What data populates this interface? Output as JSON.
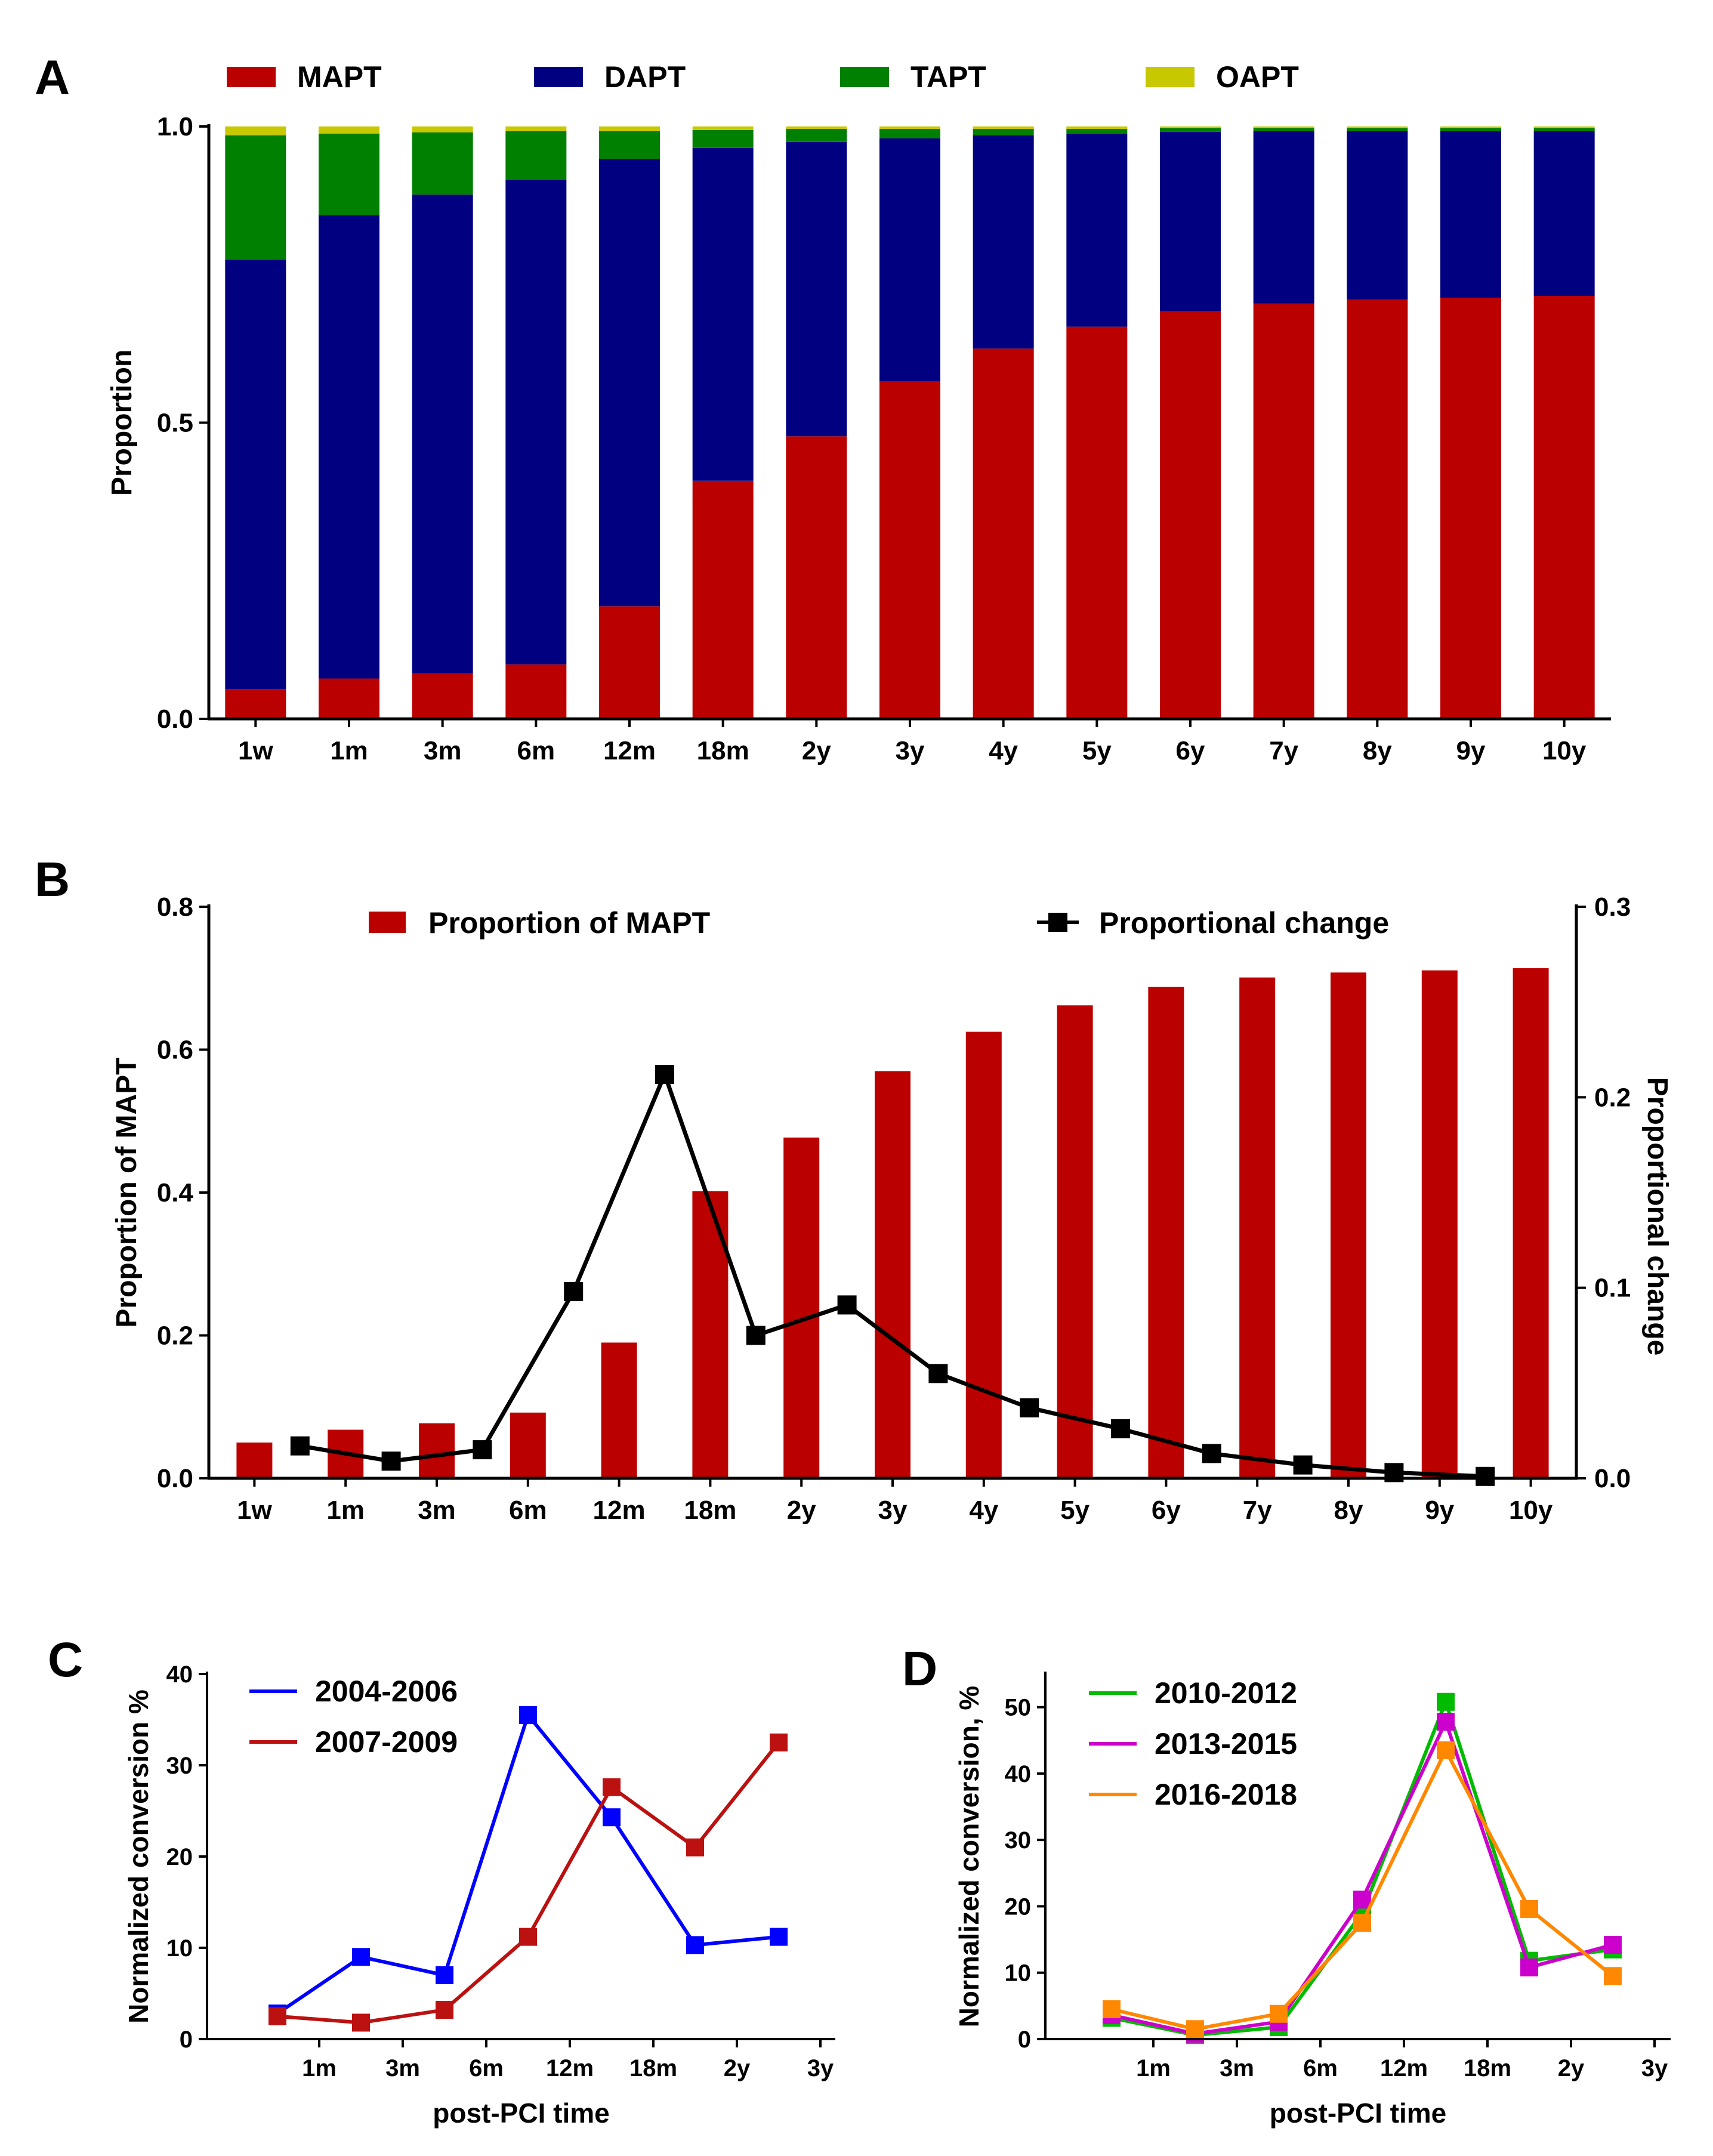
{
  "colors": {
    "MAPT": "#bb0000",
    "DAPT": "#000080",
    "TAPT": "#008000",
    "OAPT": "#c8c800",
    "line_black": "#000000",
    "c_2004_2006": "#0000ff",
    "c_2007_2009": "#bb1111",
    "d_2010_2012": "#00bb00",
    "d_2013_2015": "#cc00cc",
    "d_2016_2018": "#ff8800"
  },
  "chart_data": [
    {
      "id": "A",
      "panel_label": "A",
      "type": "bar",
      "stacked": true,
      "categories": [
        "1w",
        "1m",
        "3m",
        "6m",
        "12m",
        "18m",
        "2y",
        "3y",
        "4y",
        "5y",
        "6y",
        "7y",
        "8y",
        "9y",
        "10y"
      ],
      "series": [
        {
          "name": "MAPT",
          "values": [
            0.05,
            0.068,
            0.077,
            0.092,
            0.19,
            0.402,
            0.477,
            0.57,
            0.625,
            0.662,
            0.688,
            0.701,
            0.708,
            0.711,
            0.714
          ]
        },
        {
          "name": "DAPT",
          "values": [
            0.725,
            0.782,
            0.808,
            0.818,
            0.755,
            0.562,
            0.497,
            0.41,
            0.36,
            0.326,
            0.303,
            0.291,
            0.284,
            0.281,
            0.278
          ]
        },
        {
          "name": "TAPT",
          "values": [
            0.21,
            0.138,
            0.105,
            0.082,
            0.047,
            0.03,
            0.022,
            0.016,
            0.011,
            0.008,
            0.006,
            0.005,
            0.005,
            0.005,
            0.005
          ]
        },
        {
          "name": "OAPT",
          "values": [
            0.015,
            0.012,
            0.01,
            0.008,
            0.008,
            0.006,
            0.004,
            0.004,
            0.004,
            0.004,
            0.003,
            0.003,
            0.003,
            0.003,
            0.003
          ]
        }
      ],
      "ylabel": "Proportion",
      "xlabel": "",
      "ylim": [
        0,
        1.0
      ],
      "yticks": [
        "0.0",
        "0.5",
        "1.0"
      ],
      "legend": "top"
    },
    {
      "id": "B",
      "panel_label": "B",
      "type": "bar+line",
      "categories": [
        "1w",
        "1m",
        "3m",
        "6m",
        "12m",
        "18m",
        "2y",
        "3y",
        "4y",
        "5y",
        "6y",
        "7y",
        "8y",
        "9y",
        "10y"
      ],
      "bar_series": {
        "name": "Proportion of MAPT",
        "values": [
          0.05,
          0.068,
          0.077,
          0.092,
          0.19,
          0.402,
          0.477,
          0.57,
          0.625,
          0.662,
          0.688,
          0.701,
          0.708,
          0.711,
          0.714
        ]
      },
      "line_series": {
        "name": "Proportional change",
        "values": [
          0.017,
          0.009,
          0.015,
          0.098,
          0.212,
          0.075,
          0.091,
          0.055,
          0.037,
          0.026,
          0.013,
          0.007,
          0.003,
          0.001
        ]
      },
      "ylabel": "Proportion of MAPT",
      "y2label": "Proportional change",
      "ylim": [
        0,
        0.8
      ],
      "y2lim": [
        0,
        0.3
      ],
      "yticks": [
        "0.0",
        "0.2",
        "0.4",
        "0.6",
        "0.8"
      ],
      "y2ticks": [
        "0.0",
        "0.1",
        "0.2",
        "0.3"
      ],
      "legend": "top"
    },
    {
      "id": "C",
      "panel_label": "C",
      "type": "line",
      "categories": [
        "1m",
        "3m",
        "6m",
        "12m",
        "18m",
        "2y",
        "3y"
      ],
      "series": [
        {
          "name": "2004-2006",
          "values": [
            2.8,
            9.0,
            7.0,
            35.5,
            24.3,
            10.3,
            11.2
          ]
        },
        {
          "name": "2007-2009",
          "values": [
            2.5,
            1.8,
            3.2,
            11.2,
            27.6,
            21.0,
            32.5
          ]
        }
      ],
      "ylabel": "Normalized conversion %",
      "xlabel": "post-PCI time",
      "ylim": [
        0,
        40
      ],
      "yticks": [
        "0",
        "10",
        "20",
        "30",
        "40"
      ],
      "legend": "top-left"
    },
    {
      "id": "D",
      "panel_label": "D",
      "type": "line",
      "categories": [
        "1m",
        "3m",
        "6m",
        "12m",
        "18m",
        "2y",
        "3y"
      ],
      "series": [
        {
          "name": "2010-2012",
          "values": [
            3.2,
            0.6,
            1.8,
            19.0,
            50.8,
            11.8,
            13.5
          ]
        },
        {
          "name": "2013-2015",
          "values": [
            3.6,
            0.8,
            2.6,
            21.0,
            47.8,
            10.8,
            14.2
          ]
        },
        {
          "name": "2016-2018",
          "values": [
            4.5,
            1.5,
            3.8,
            17.5,
            43.5,
            19.6,
            9.5
          ]
        }
      ],
      "ylabel": "Normalized conversion, %",
      "xlabel": "post-PCI time",
      "ylim": [
        0,
        55
      ],
      "yticks": [
        "0",
        "10",
        "20",
        "30",
        "40",
        "50"
      ],
      "legend": "top-left"
    }
  ]
}
